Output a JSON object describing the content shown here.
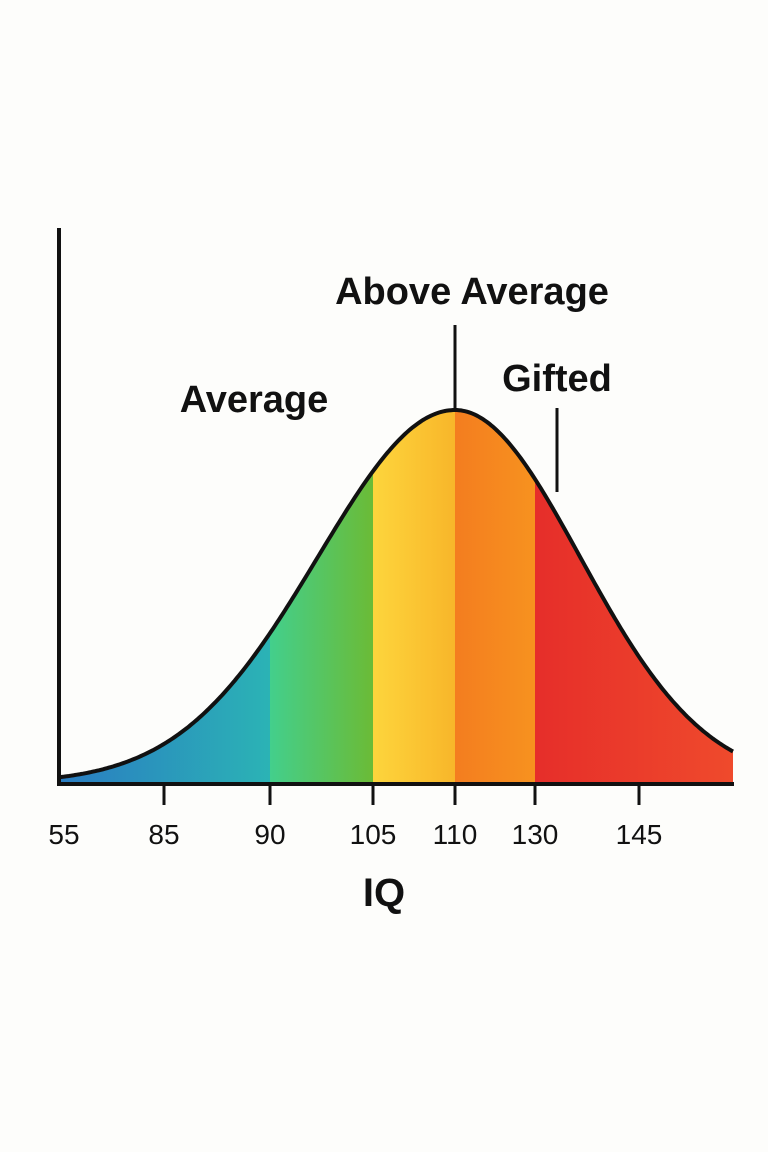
{
  "chart_data": {
    "type": "area",
    "title": "",
    "xlabel": "IQ",
    "ylabel": "",
    "x_tick_labels": [
      "55",
      "85",
      "90",
      "105",
      "110",
      "130",
      "145"
    ],
    "curve": "bell-shaped distribution, peak at 110",
    "bands": [
      {
        "from": "55",
        "to": "90",
        "color_start": "#2a7cc2",
        "color_end": "#2bb3b5"
      },
      {
        "from": "90",
        "to": "105",
        "color_start": "#43cf8c",
        "color_end": "#6bbb36"
      },
      {
        "from": "105",
        "to": "110",
        "color_start": "#fdd53c",
        "color_end": "#f8b62a"
      },
      {
        "from": "110",
        "to": "130",
        "color_start": "#f47d1f",
        "color_end": "#f7921f"
      },
      {
        "from": "130",
        "to": "end",
        "color_start": "#e62e2a",
        "color_end": "#ef4a2c"
      }
    ],
    "annotations": [
      {
        "text": "Average",
        "pointer": false
      },
      {
        "text": "Above Average",
        "at": "110",
        "pointer": true
      },
      {
        "text": "Gifted",
        "at": "130",
        "pointer": true
      }
    ],
    "grid": false,
    "legend": "none",
    "axis_color": "#111111"
  }
}
